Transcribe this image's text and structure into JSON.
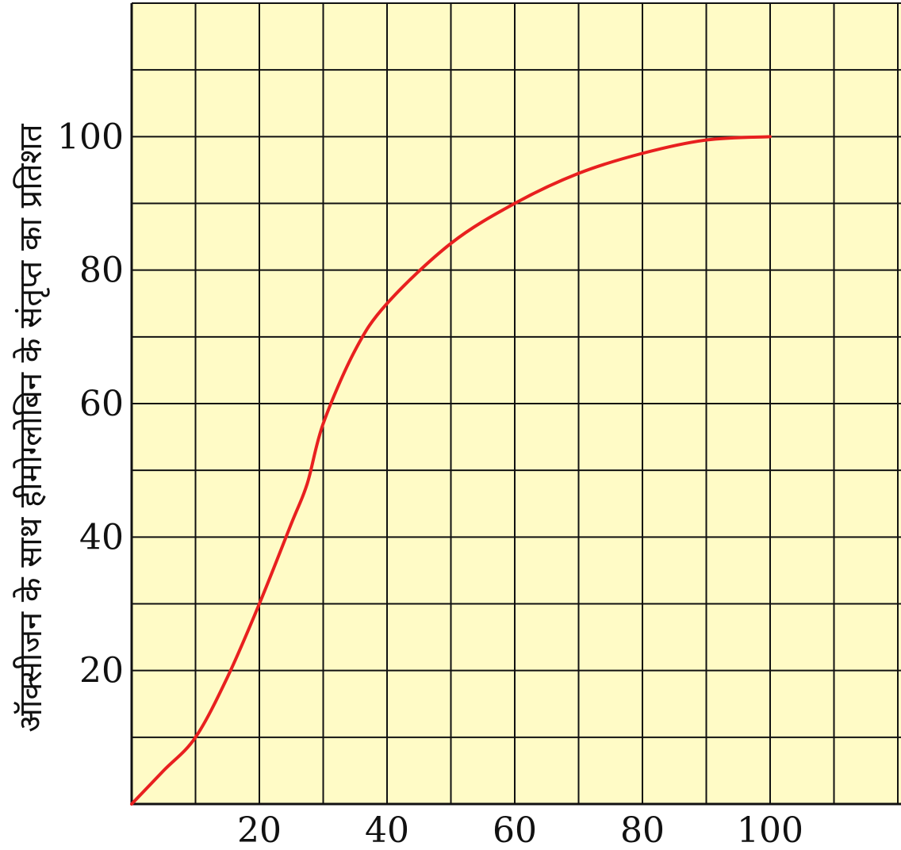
{
  "chart_data": {
    "type": "line",
    "title": "",
    "xlabel": "",
    "ylabel": "ऑक्सीजन के साथ हीमोग्लोबिन के संतृप्त का प्रतिशत",
    "xlim": [
      0,
      120
    ],
    "ylim": [
      0,
      120
    ],
    "xticks": [
      20,
      40,
      60,
      80,
      100
    ],
    "yticks": [
      20,
      40,
      60,
      80,
      100
    ],
    "grid": true,
    "grid_step": 10,
    "background_color": "#fffbc6",
    "line_color": "#e8201f",
    "series": [
      {
        "x": [
          0,
          5,
          10,
          15,
          20,
          25,
          27.5,
          30,
          35,
          40,
          50,
          60,
          70,
          80,
          90,
          100
        ],
        "y": [
          0,
          5,
          10,
          19,
          30,
          42,
          48,
          57,
          68,
          75,
          84,
          90,
          94.5,
          97.5,
          99.5,
          100
        ]
      }
    ]
  }
}
